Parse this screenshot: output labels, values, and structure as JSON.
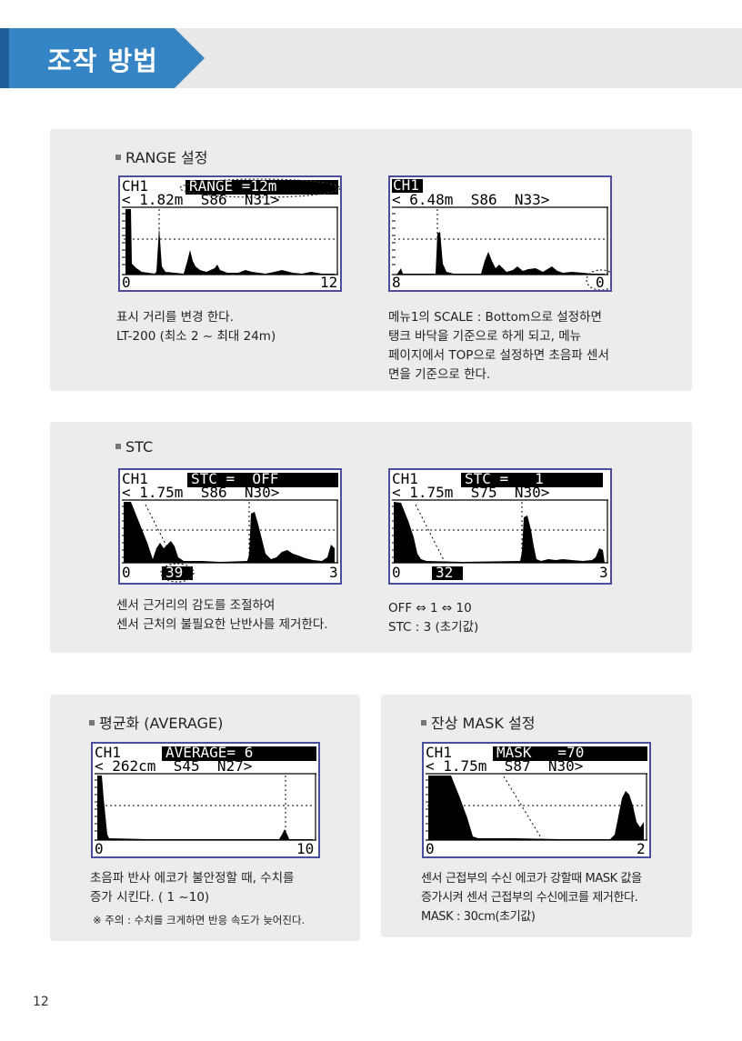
{
  "header": {
    "title": "조작 방법"
  },
  "page_number": "12",
  "sections": {
    "range": {
      "title": "RANGE 설정",
      "screen1": {
        "line1_left": "CH1",
        "line1_badge": "RANGE =12m",
        "line2": "< 1.82m  S86  N31>",
        "bottom_left": "0",
        "bottom_right": "12"
      },
      "screen2": {
        "line1_left": "CH1",
        "line2": "< 6.48m  S86  N33>",
        "bottom_left": "8",
        "bottom_right": "0"
      },
      "desc_left": [
        "표시 거리를 변경 한다.",
        "LT-200 (최소 2 ~ 최대 24m)"
      ],
      "desc_right": [
        "메뉴1의 SCALE : Bottom으로 설정하면",
        "탱크 바닥을 기준으로 하게 되고, 메뉴",
        "페이지에서 TOP으로 설정하면 초음파 센서",
        "면을 기준으로 한다."
      ]
    },
    "stc": {
      "title": "STC",
      "screen1": {
        "line1_left": "CH1",
        "line1_badge": "STC =  OFF",
        "line2": "< 1.75m  S86  N30>",
        "bottom_left": "0",
        "bottom_mid": "39",
        "bottom_right": "3"
      },
      "screen2": {
        "line1_left": "CH1",
        "line1_badge": "STC =   1",
        "line2": "< 1.75m  S75  N30>",
        "bottom_left": "0",
        "bottom_mid": "32",
        "bottom_right": "3"
      },
      "desc_left": [
        "센서 근거리의 감도를 조절하여",
        "센서 근처의 불필요한 난반사를 제거한다."
      ],
      "desc_right": [
        "OFF ⇔ 1 ⇔ 10",
        "STC : 3 (초기값)"
      ]
    },
    "average": {
      "title": "평균화 (AVERAGE)",
      "screen": {
        "line1_left": "CH1",
        "line1_badge": "AVERAGE= 6",
        "line2": "< 262cm  S45  N27>",
        "bottom_left": "0",
        "bottom_right": "10"
      },
      "desc": [
        "초음파 반사 에코가 불안정할 때, 수치를",
        "증가 시킨다. ( 1 ~10)"
      ],
      "note": "※ 주의 : 수치를 크게하면 반응 속도가 늦어진다."
    },
    "mask": {
      "title": "잔상 MASK 설정",
      "screen": {
        "line1_left": "CH1",
        "line1_badge": "MASK   =70",
        "line2": "< 1.75m  S87  N30>",
        "bottom_left": "0",
        "bottom_right": "2"
      },
      "desc": [
        "센서 근접부의 수신 에코가 강할때 MASK 값을",
        "증가시켜 센서 근접부의 수신에코를 제거한다.",
        "MASK : 30cm(초기값)"
      ]
    }
  }
}
